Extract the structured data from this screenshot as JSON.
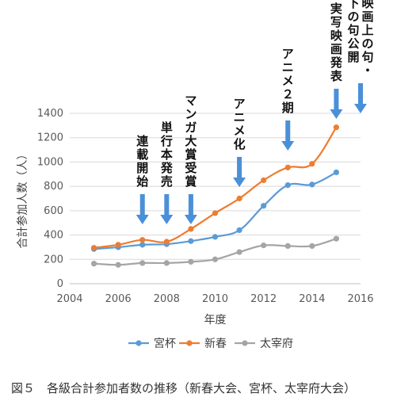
{
  "chart_data": {
    "type": "line",
    "xlabel": "年度",
    "ylabel": "合計参加人数（人）",
    "xlim": [
      2004,
      2016
    ],
    "ylim": [
      0,
      1400
    ],
    "x_ticks": [
      "2004",
      "2006",
      "2008",
      "2010",
      "2012",
      "2014",
      "2016"
    ],
    "y_ticks": [
      "0",
      "200",
      "400",
      "600",
      "800",
      "1000",
      "1200",
      "1400"
    ],
    "grid": "horizontal",
    "legend_position": "bottom",
    "series": [
      {
        "name": "宮杯",
        "color": "#5B9BD5",
        "x": [
          2005,
          2006,
          2007,
          2008,
          2009,
          2010,
          2011,
          2012,
          2013,
          2014,
          2015
        ],
        "values": [
          285,
          300,
          320,
          325,
          350,
          385,
          440,
          640,
          810,
          815,
          915
        ]
      },
      {
        "name": "新春",
        "color": "#ED7D31",
        "x": [
          2005,
          2006,
          2007,
          2008,
          2009,
          2010,
          2011,
          2012,
          2013,
          2014,
          2015
        ],
        "values": [
          295,
          320,
          360,
          345,
          450,
          580,
          700,
          850,
          955,
          985,
          1285
        ]
      },
      {
        "name": "太宰府",
        "color": "#A5A5A5",
        "x": [
          2005,
          2006,
          2007,
          2008,
          2009,
          2010,
          2011,
          2012,
          2013,
          2014,
          2015
        ],
        "values": [
          165,
          155,
          170,
          170,
          180,
          200,
          260,
          315,
          310,
          310,
          370
        ]
      }
    ],
    "annotations": [
      {
        "x": 2007,
        "lines": [
          "連載開始"
        ]
      },
      {
        "x": 2008,
        "lines": [
          "単行本発売"
        ]
      },
      {
        "x": 2009,
        "lines": [
          "マンガ大賞受賞"
        ]
      },
      {
        "x": 2011,
        "lines": [
          "アニメ化"
        ]
      },
      {
        "x": 2013,
        "lines": [
          "アニメ２期"
        ]
      },
      {
        "x": 2015,
        "lines": [
          "実写映画発表"
        ]
      },
      {
        "x": 2016,
        "lines": [
          "映画上の句・",
          "下の句公開"
        ]
      }
    ],
    "arrow_color": "#4A90D9"
  },
  "caption": "図５　各級合計参加者数の推移（新春大会、宮杯、太宰府大会）"
}
